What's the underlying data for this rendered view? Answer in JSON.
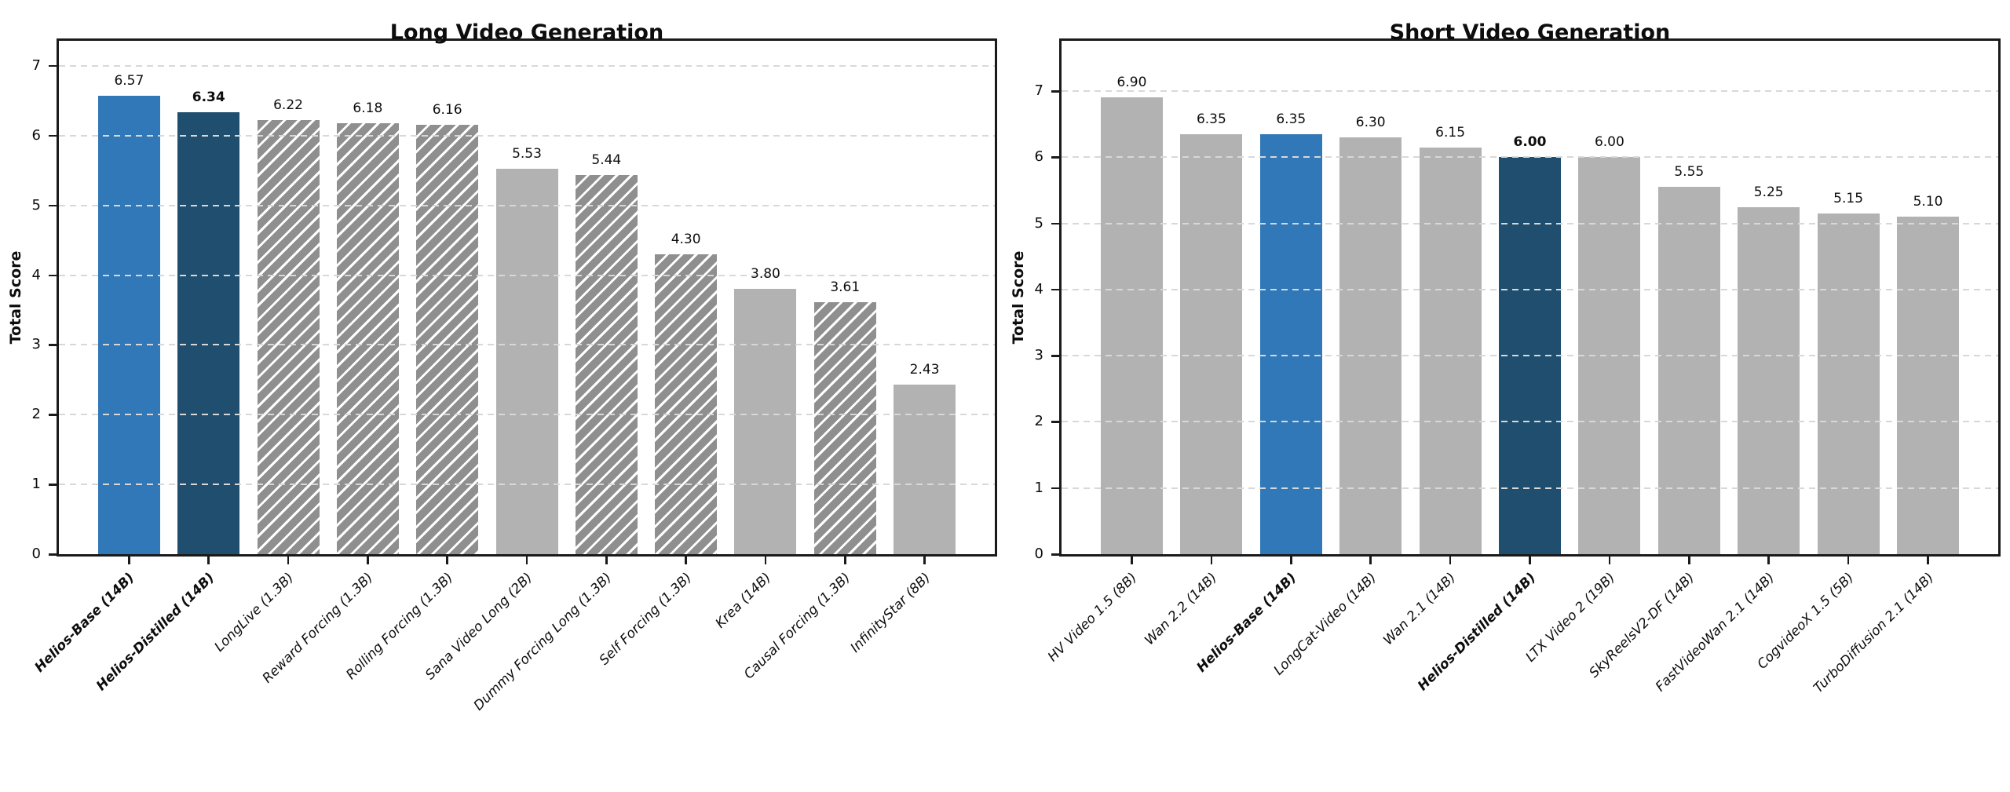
{
  "colors": {
    "base_blue": "#3078B7",
    "distilled_navy": "#1F4E6E",
    "gray": "#B2B2B2",
    "hatch_gray": "#8F8F8F",
    "grid": "#D8D8D8",
    "spine": "#1A1A1A",
    "text": "#0D0D0D"
  },
  "chart_data": [
    {
      "type": "bar",
      "title": "Long Video Generation",
      "ylabel": "Total Score",
      "ylim": [
        0,
        7.36
      ],
      "yticks": [
        0,
        1,
        2,
        3,
        4,
        5,
        6,
        7
      ],
      "grid": "horizontal dashed",
      "legend": "none",
      "bars": [
        {
          "label": "Helios-Base (14B)",
          "value": 6.57,
          "value_label": "6.57",
          "style": "blue",
          "label_bold": true,
          "value_bold": false
        },
        {
          "label": "Helios-Distilled (14B)",
          "value": 6.34,
          "value_label": "6.34",
          "style": "navy",
          "label_bold": true,
          "value_bold": true
        },
        {
          "label": "LongLive (1.3B)",
          "value": 6.22,
          "value_label": "6.22",
          "style": "hatched",
          "label_bold": false,
          "value_bold": false
        },
        {
          "label": "Reward Forcing (1.3B)",
          "value": 6.18,
          "value_label": "6.18",
          "style": "hatched",
          "label_bold": false,
          "value_bold": false
        },
        {
          "label": "Rolling Forcing (1.3B)",
          "value": 6.16,
          "value_label": "6.16",
          "style": "hatched",
          "label_bold": false,
          "value_bold": false
        },
        {
          "label": "Sana Video Long (2B)",
          "value": 5.53,
          "value_label": "5.53",
          "style": "gray",
          "label_bold": false,
          "value_bold": false
        },
        {
          "label": "Dummy Forcing Long (1.3B)",
          "value": 5.44,
          "value_label": "5.44",
          "style": "hatched",
          "label_bold": false,
          "value_bold": false
        },
        {
          "label": "Self Forcing (1.3B)",
          "value": 4.3,
          "value_label": "4.30",
          "style": "hatched",
          "label_bold": false,
          "value_bold": false
        },
        {
          "label": "Krea (14B)",
          "value": 3.8,
          "value_label": "3.80",
          "style": "gray",
          "label_bold": false,
          "value_bold": false
        },
        {
          "label": "Causal Forcing (1.3B)",
          "value": 3.61,
          "value_label": "3.61",
          "style": "hatched",
          "label_bold": false,
          "value_bold": false
        },
        {
          "label": "InfinityStar (8B)",
          "value": 2.43,
          "value_label": "2.43",
          "style": "gray",
          "label_bold": false,
          "value_bold": false
        }
      ]
    },
    {
      "type": "bar",
      "title": "Short Video Generation",
      "ylabel": "Total Score",
      "ylim": [
        0,
        7.76
      ],
      "yticks": [
        0,
        1,
        2,
        3,
        4,
        5,
        6,
        7
      ],
      "grid": "horizontal dashed",
      "legend": "none",
      "bars": [
        {
          "label": "HV Video 1.5 (8B)",
          "value": 6.9,
          "value_label": "6.90",
          "style": "gray",
          "label_bold": false,
          "value_bold": false
        },
        {
          "label": "Wan 2.2 (14B)",
          "value": 6.35,
          "value_label": "6.35",
          "style": "gray",
          "label_bold": false,
          "value_bold": false
        },
        {
          "label": "Helios-Base (14B)",
          "value": 6.35,
          "value_label": "6.35",
          "style": "blue",
          "label_bold": true,
          "value_bold": false
        },
        {
          "label": "LongCat-Video (14B)",
          "value": 6.3,
          "value_label": "6.30",
          "style": "gray",
          "label_bold": false,
          "value_bold": false
        },
        {
          "label": "Wan 2.1 (14B)",
          "value": 6.15,
          "value_label": "6.15",
          "style": "gray",
          "label_bold": false,
          "value_bold": false
        },
        {
          "label": "Helios-Distilled (14B)",
          "value": 6.0,
          "value_label": "6.00",
          "style": "navy",
          "label_bold": true,
          "value_bold": true
        },
        {
          "label": "LTX Video 2 (19B)",
          "value": 6.0,
          "value_label": "6.00",
          "style": "gray",
          "label_bold": false,
          "value_bold": false
        },
        {
          "label": "SkyReelsV2-DF (14B)",
          "value": 5.55,
          "value_label": "5.55",
          "style": "gray",
          "label_bold": false,
          "value_bold": false
        },
        {
          "label": "FastVideoWan 2.1 (14B)",
          "value": 5.25,
          "value_label": "5.25",
          "style": "gray",
          "label_bold": false,
          "value_bold": false
        },
        {
          "label": "CogvideoX 1.5 (5B)",
          "value": 5.15,
          "value_label": "5.15",
          "style": "gray",
          "label_bold": false,
          "value_bold": false
        },
        {
          "label": "TurboDiffusion 2.1 (14B)",
          "value": 5.1,
          "value_label": "5.10",
          "style": "gray",
          "label_bold": false,
          "value_bold": false
        }
      ]
    }
  ]
}
